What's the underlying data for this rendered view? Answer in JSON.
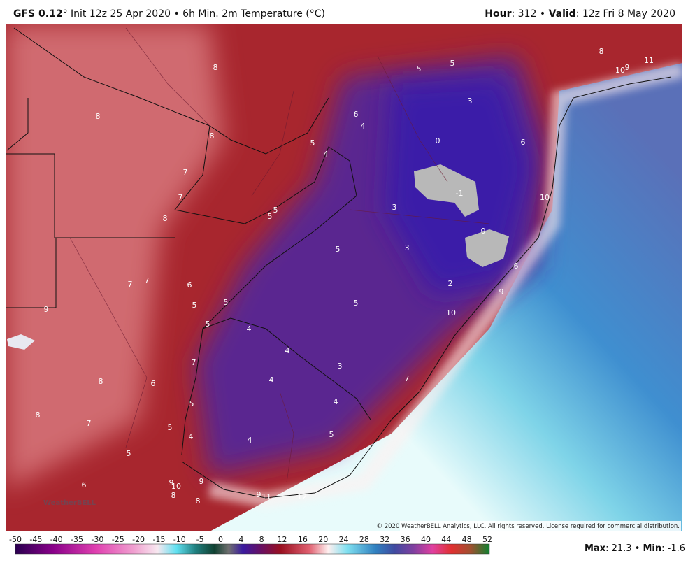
{
  "header": {
    "model": "GFS 0.12",
    "rest": "° Init 12z 25 Apr 2020 • 6h Min. 2m Temperature (°C)",
    "hour_key": "Hour",
    "hour_val": ": 312 • ",
    "valid_key": "Valid",
    "valid_val": ": 12z Fri 8 May 2020"
  },
  "map_labels": [
    8,
    8,
    8,
    7,
    7,
    8,
    7,
    7,
    6,
    5,
    5,
    5,
    9,
    5,
    5,
    3,
    6,
    4,
    5,
    4,
    0,
    6,
    -1,
    3,
    5,
    5,
    0,
    5,
    3,
    10,
    6,
    2,
    9,
    5,
    10,
    4,
    4,
    3,
    7,
    4,
    6,
    8,
    7,
    4,
    5,
    8,
    7,
    5,
    4,
    4,
    5,
    5,
    6,
    9,
    10,
    9,
    8,
    8,
    9,
    11,
    12,
    8,
    10,
    9,
    11
  ],
  "logo": "WeatherBELL",
  "copyright": "© 2020 WeatherBELL Analytics, LLC. All rights reserved. License required for commercial distribution.",
  "colorbar": [
    -50,
    -45,
    -40,
    -35,
    -30,
    -25,
    -20,
    -15,
    -10,
    -5,
    0,
    4,
    8,
    12,
    16,
    20,
    24,
    28,
    32,
    36,
    40,
    44,
    48,
    52
  ],
  "stats": {
    "max_key": "Max",
    "max_val": ": 21.3 • ",
    "min_key": "Min",
    "min_val": ": -1.6"
  }
}
